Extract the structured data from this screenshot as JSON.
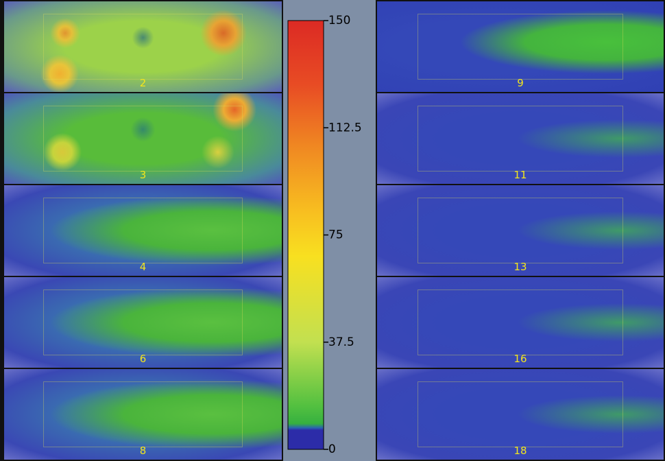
{
  "left_panels": [
    "2",
    "3",
    "4",
    "6",
    "8"
  ],
  "right_panels": [
    "9",
    "11",
    "13",
    "16",
    "18"
  ],
  "colorbar": {
    "range": [
      0,
      150
    ],
    "ticks": [
      0,
      37.5,
      75,
      112.5,
      150
    ]
  }
}
